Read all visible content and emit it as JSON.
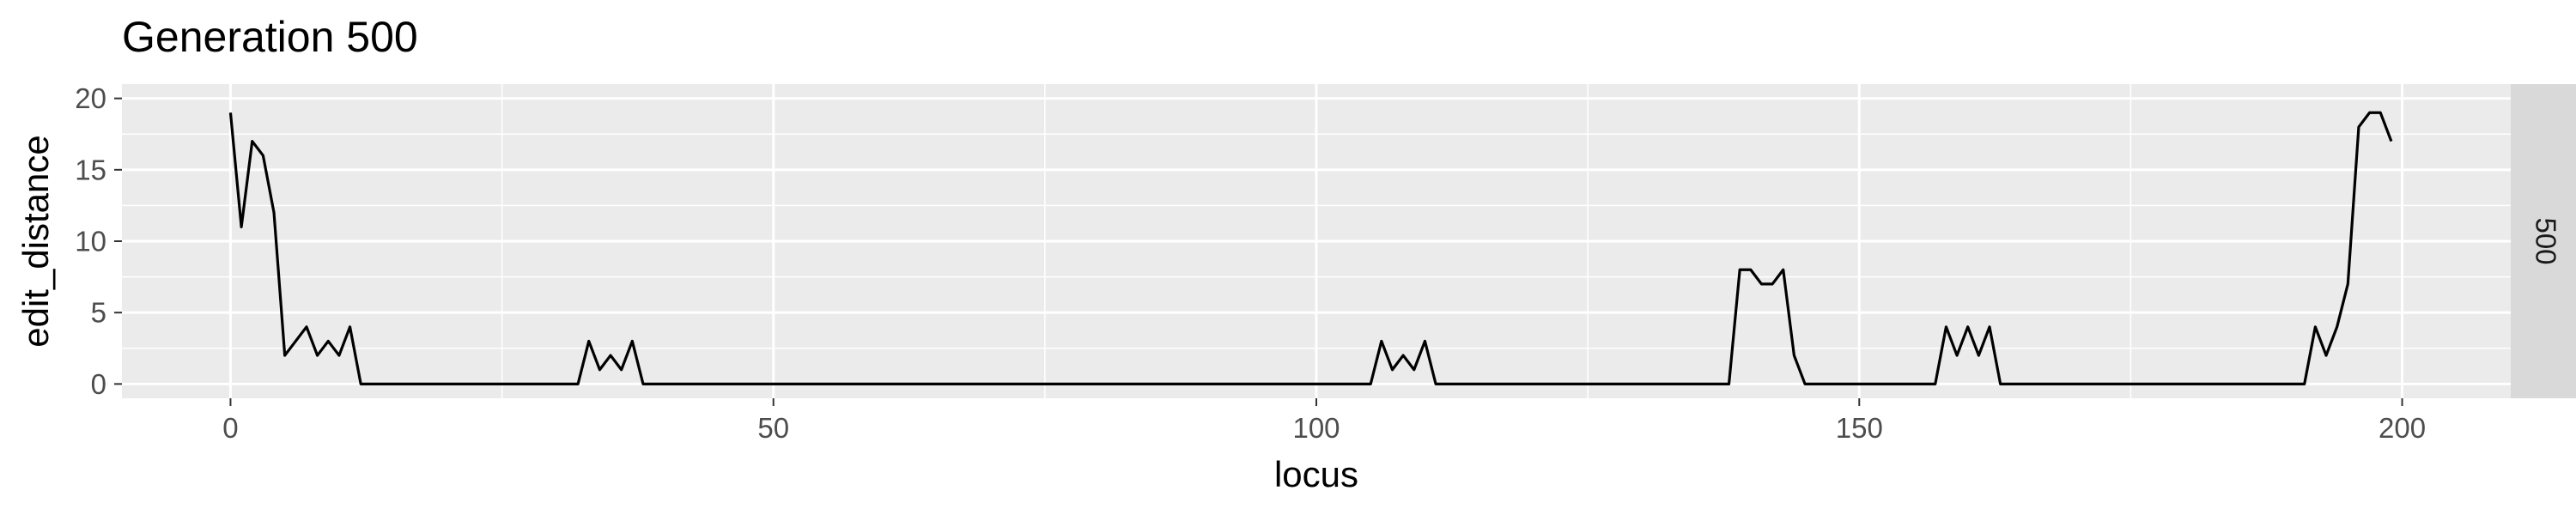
{
  "chart_data": {
    "type": "line",
    "title": "Generation 500",
    "xlabel": "locus",
    "ylabel": "edit_distance",
    "facet_label": "500",
    "xlim": [
      -10,
      210
    ],
    "ylim": [
      -1,
      21
    ],
    "x_ticks": [
      0,
      50,
      100,
      150,
      200
    ],
    "y_ticks": [
      0,
      5,
      10,
      15,
      20
    ],
    "x_tick_labels": [
      "0",
      "50",
      "100",
      "150",
      "200"
    ],
    "y_tick_labels": [
      "0",
      "5",
      "10",
      "15",
      "20"
    ],
    "grid": true,
    "legend": "none",
    "colors": {
      "panel_background": "#ebebeb",
      "grid_major": "#ffffff",
      "strip_background": "#d9d9d9",
      "line": "#000000"
    },
    "series": [
      {
        "x": [
          0,
          1,
          2,
          3,
          4,
          5,
          6,
          7,
          8,
          9,
          10,
          11,
          12,
          13,
          32,
          33,
          34,
          35,
          36,
          37,
          38,
          39,
          105,
          106,
          107,
          108,
          109,
          110,
          111,
          112,
          138,
          139,
          140,
          141,
          142,
          143,
          144,
          145,
          146,
          157,
          158,
          159,
          160,
          161,
          162,
          163,
          164,
          191,
          192,
          193,
          194,
          195,
          196,
          197,
          198,
          199
        ],
        "y": [
          19,
          11,
          17,
          16,
          12,
          2,
          3,
          4,
          2,
          3,
          2,
          4,
          0,
          0,
          0,
          3,
          1,
          2,
          1,
          3,
          0,
          0,
          0,
          3,
          1,
          2,
          1,
          3,
          0,
          0,
          0,
          8,
          8,
          7,
          7,
          8,
          2,
          0,
          0,
          0,
          4,
          2,
          4,
          2,
          4,
          0,
          0,
          0,
          4,
          2,
          4,
          7,
          18,
          19,
          19,
          17
        ]
      }
    ]
  }
}
